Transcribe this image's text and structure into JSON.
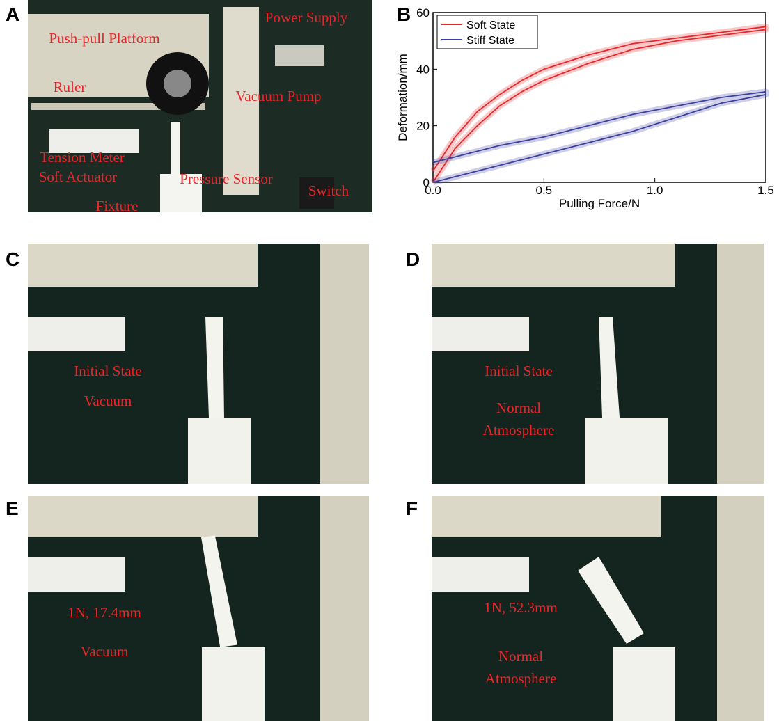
{
  "panel_labels": [
    "A",
    "B",
    "C",
    "D",
    "E",
    "F"
  ],
  "photo_annotations": [
    [
      "Push-pull Platform",
      "Power Supply",
      "Ruler",
      "Vacuum Pump",
      "Tension Meter",
      "Soft Actuator",
      "Pressure Sensor",
      "Switch",
      "Fixture"
    ],
    [
      "Initial State",
      "Vacuum"
    ],
    [
      "Initial State",
      "Normal",
      "Atmosphere"
    ],
    [
      "1N,  17.4mm",
      "Vacuum"
    ],
    [
      "1N, 52.3mm",
      "Normal",
      "Atmosphere"
    ]
  ],
  "chart_data": {
    "type": "line",
    "xlabel": "Pulling Force/N",
    "ylabel": "Deformation/mm",
    "xlim": [
      0,
      1.5
    ],
    "ylim": [
      0,
      60
    ],
    "xticks": [
      {
        "value": 0,
        "label": "0.0"
      },
      0.5,
      {
        "value": 1,
        "label": "1.0"
      },
      1.5
    ],
    "yticks": [
      0,
      20,
      40,
      60
    ],
    "legend": "upper left",
    "series": [
      {
        "name": "Soft State",
        "color": "#e8262a",
        "x": [
          0,
          0.1,
          0.2,
          0.3,
          0.4,
          0.5,
          0.7,
          0.9,
          1.1,
          1.3,
          1.5,
          1.5,
          1.3,
          1.1,
          0.9,
          0.7,
          0.5,
          0.4,
          0.3,
          0.2,
          0.1,
          0
        ],
        "values": [
          0,
          12,
          20,
          27,
          32,
          36,
          42,
          47,
          50,
          52,
          54,
          55,
          53,
          51,
          49,
          45,
          40,
          36,
          31,
          25,
          16,
          4
        ]
      },
      {
        "name": "Stiff State",
        "color": "#3a3fa0",
        "x": [
          0,
          0.1,
          0.2,
          0.3,
          0.5,
          0.7,
          0.9,
          1.1,
          1.3,
          1.5,
          1.5,
          1.3,
          1.1,
          0.9,
          0.7,
          0.5,
          0.3,
          0.1,
          0
        ],
        "values": [
          0,
          2,
          4,
          6,
          10,
          14,
          18,
          23,
          28,
          31,
          32,
          30,
          27,
          24,
          20,
          16,
          13,
          9,
          7
        ]
      }
    ]
  }
}
